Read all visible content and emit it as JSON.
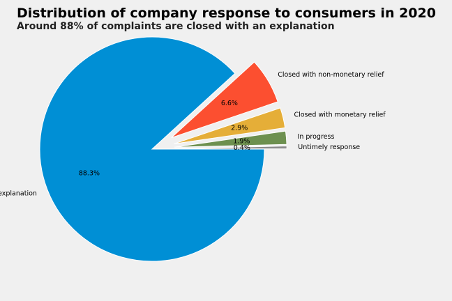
{
  "chart_data": {
    "type": "pie",
    "title": "Distribution of company response to consumers in 2020",
    "subtitle": "Around 88% of complaints are closed with an explanation",
    "slices": [
      {
        "label": "Closed with explanation",
        "value": 88.3,
        "pct_label": "88.3%",
        "color": "#008fd5",
        "explode": 0
      },
      {
        "label": "Closed with non-monetary relief",
        "value": 6.6,
        "pct_label": "6.6%",
        "color": "#fc4f30",
        "explode": 0.2
      },
      {
        "label": "Closed with monetary relief",
        "value": 2.9,
        "pct_label": "2.9%",
        "color": "#e5ae38",
        "explode": 0.2
      },
      {
        "label": "In progress",
        "value": 1.9,
        "pct_label": "1.9%",
        "color": "#6d904f",
        "explode": 0.2
      },
      {
        "label": "Untimely response",
        "value": 0.4,
        "pct_label": "0.4%",
        "color": "#8b8b8b",
        "explode": 0.2
      }
    ],
    "start_angle_deg": 0,
    "direction": "clockwise",
    "legend": "none"
  }
}
